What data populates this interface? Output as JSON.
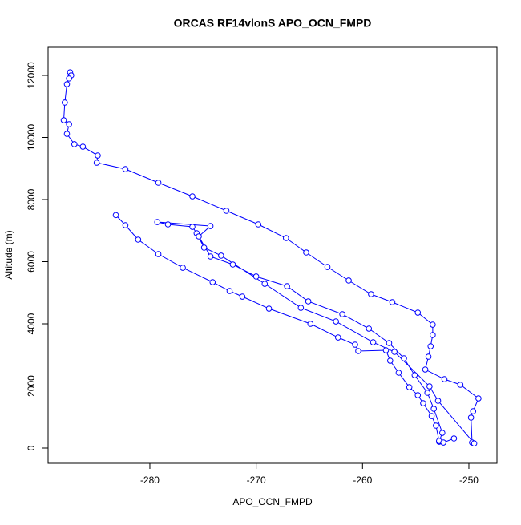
{
  "chart_data": {
    "type": "line",
    "title": "ORCAS RF14vlonS APO_OCN_FMPD",
    "x_label": "APO_OCN_FMPD",
    "y_label": "Altitude (m)",
    "xlim": [
      -289.57,
      -247.36
    ],
    "ylim": [
      -490,
      12903
    ],
    "xticks": [
      -280,
      -270,
      -260,
      -250
    ],
    "yticks": [
      0,
      2000,
      4000,
      6000,
      8000,
      10000,
      12000
    ],
    "x": [
      -287.5,
      -287.4,
      -287.6,
      -287.8,
      -288.0,
      -288.1,
      -287.6,
      -287.8,
      -287.1,
      -286.3,
      -284.9,
      -285.0,
      -282.3,
      -279.2,
      -276.0,
      -272.8,
      -269.8,
      -267.2,
      -265.3,
      -263.3,
      -261.3,
      -259.2,
      -257.2,
      -254.8,
      -253.4,
      -253.4,
      -253.6,
      -253.8,
      -254.1,
      -252.3,
      -250.8,
      -249.1,
      -249.6,
      -249.8,
      -249.7,
      -249.5,
      -252.9,
      -253.7,
      -257.0,
      -259.0,
      -262.5,
      -265.8,
      -269.2,
      -273.3,
      -274.9,
      -275.6,
      -276.0,
      -278.3,
      -279.3,
      -274.3,
      -275.4,
      -274.3,
      -272.2,
      -270.0,
      -267.1,
      -265.1,
      -261.9,
      -259.4,
      -257.5,
      -256.1,
      -255.1,
      -253.9,
      -253.3,
      -252.5,
      -252.8,
      null,
      -283.2,
      -282.3,
      -281.1,
      -279.2,
      -276.9,
      -274.1,
      -272.5,
      -271.3,
      -268.8,
      -264.9,
      -262.3,
      -260.7,
      -260.4,
      -257.8,
      -257.4,
      -256.6,
      -255.6,
      -254.8,
      -254.3,
      -253.5,
      -253.1,
      -252.8,
      -252.4,
      -251.4
    ],
    "series": [
      {
        "color": "#0000ff",
        "values": [
          12100,
          12000,
          11900,
          11716,
          11123,
          10555,
          10426,
          10116,
          9781,
          9703,
          9419,
          9187,
          8980,
          8542,
          8103,
          7639,
          7200,
          6761,
          6297,
          5832,
          5394,
          4955,
          4697,
          4361,
          3974,
          3639,
          3277,
          2942,
          2529,
          2219,
          2039,
          1600,
          1187,
          981,
          180,
          150,
          1523,
          1987,
          3097,
          3406,
          4077,
          4516,
          5290,
          6194,
          6452,
          6916,
          7122,
          7200,
          7277,
          7148,
          6813,
          6168,
          5910,
          5523,
          5213,
          4723,
          4310,
          3845,
          3381,
          2890,
          2348,
          1781,
          1265,
          490,
          206,
          null,
          7500,
          7174,
          6710,
          6245,
          5806,
          5342,
          5058,
          4877,
          4490,
          4000,
          3561,
          3329,
          3123,
          3148,
          2813,
          2426,
          1961,
          1703,
          1445,
          1032,
          723,
          232,
          180,
          310
        ]
      }
    ]
  }
}
